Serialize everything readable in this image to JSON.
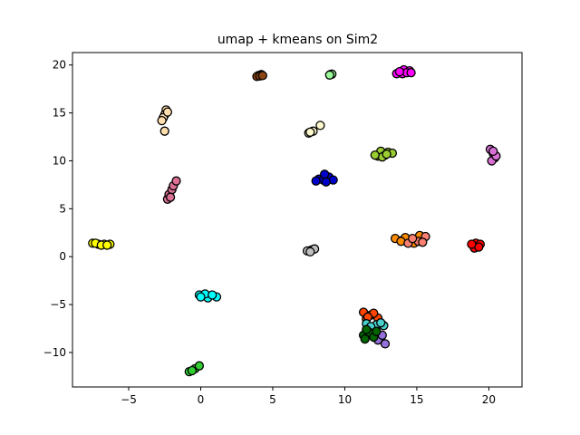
{
  "chart_data": {
    "type": "scatter",
    "title": "umap + kmeans on Sim2",
    "xlabel": "",
    "ylabel": "",
    "xlim": [
      -8.9,
      22.3
    ],
    "ylim": [
      -13.6,
      21.3
    ],
    "xticks": [
      -5,
      0,
      5,
      10,
      15,
      20
    ],
    "yticks": [
      -10,
      -5,
      0,
      5,
      10,
      15,
      20
    ],
    "xtick_labels": [
      "−5",
      "0",
      "5",
      "10",
      "15",
      "20"
    ],
    "ytick_labels": [
      "−10",
      "−5",
      "0",
      "5",
      "10",
      "15",
      "20"
    ],
    "grid": false,
    "legend": false,
    "clusters": [
      {
        "color": "#ffff00",
        "points": [
          [
            -7.5,
            1.4
          ],
          [
            -7.1,
            1.3
          ],
          [
            -6.7,
            1.3
          ],
          [
            -6.3,
            1.3
          ],
          [
            -7.3,
            1.4
          ],
          [
            -6.9,
            1.2
          ],
          [
            -6.5,
            1.2
          ]
        ]
      },
      {
        "color": "#8b4513",
        "points": [
          [
            4.0,
            18.9
          ],
          [
            4.2,
            19.0
          ],
          [
            3.9,
            18.8
          ],
          [
            4.1,
            18.85
          ],
          [
            4.3,
            18.9
          ]
        ]
      },
      {
        "color": "#98fb98",
        "points": [
          [
            9.0,
            19.0
          ],
          [
            9.1,
            19.05
          ],
          [
            8.95,
            18.95
          ]
        ]
      },
      {
        "color": "#ff00ff",
        "points": [
          [
            13.6,
            19.1
          ],
          [
            14.1,
            19.5
          ],
          [
            14.5,
            19.4
          ],
          [
            14.0,
            19.1
          ],
          [
            14.3,
            19.2
          ],
          [
            13.8,
            19.3
          ],
          [
            14.6,
            19.2
          ]
        ]
      },
      {
        "color": "#ffdead",
        "points": [
          [
            -2.4,
            15.3
          ],
          [
            -2.5,
            14.8
          ],
          [
            -2.6,
            14.5
          ],
          [
            -2.7,
            14.2
          ],
          [
            -2.5,
            13.1
          ],
          [
            -2.3,
            15.1
          ]
        ]
      },
      {
        "color": "#fffacd",
        "points": [
          [
            7.5,
            12.9
          ],
          [
            7.8,
            13.1
          ],
          [
            8.3,
            13.7
          ],
          [
            7.6,
            13.0
          ]
        ]
      },
      {
        "color": "#9acd32",
        "points": [
          [
            12.3,
            10.5
          ],
          [
            12.5,
            11.0
          ],
          [
            12.8,
            10.6
          ],
          [
            13.0,
            10.9
          ],
          [
            13.3,
            10.8
          ],
          [
            12.6,
            10.4
          ],
          [
            12.9,
            10.7
          ],
          [
            12.1,
            10.6
          ]
        ]
      },
      {
        "color": "#da70d6",
        "points": [
          [
            20.1,
            11.2
          ],
          [
            20.3,
            10.8
          ],
          [
            20.4,
            10.3
          ],
          [
            20.2,
            10.0
          ],
          [
            20.5,
            10.5
          ],
          [
            20.3,
            11.0
          ]
        ]
      },
      {
        "color": "#0000cd",
        "points": [
          [
            8.2,
            8.1
          ],
          [
            8.5,
            8.0
          ],
          [
            8.9,
            8.3
          ],
          [
            9.2,
            8.0
          ],
          [
            8.6,
            8.6
          ],
          [
            8.0,
            7.9
          ],
          [
            8.7,
            7.8
          ]
        ]
      },
      {
        "color": "#db7093",
        "points": [
          [
            -2.3,
            6.0
          ],
          [
            -2.2,
            6.5
          ],
          [
            -2.0,
            7.0
          ],
          [
            -1.9,
            7.4
          ],
          [
            -1.7,
            7.9
          ],
          [
            -2.1,
            6.2
          ]
        ]
      },
      {
        "color": "#c0c0c0",
        "points": [
          [
            7.4,
            0.6
          ],
          [
            7.7,
            0.7
          ],
          [
            7.9,
            0.8
          ],
          [
            7.6,
            0.5
          ]
        ]
      },
      {
        "color": "#ff8c00",
        "points": [
          [
            13.5,
            1.9
          ],
          [
            14.0,
            1.7
          ],
          [
            14.5,
            1.5
          ],
          [
            15.0,
            1.8
          ],
          [
            15.5,
            2.0
          ],
          [
            14.8,
            1.4
          ],
          [
            14.2,
            2.0
          ],
          [
            15.2,
            2.2
          ],
          [
            13.9,
            1.6
          ]
        ]
      },
      {
        "color": "#fa8072",
        "points": [
          [
            14.4,
            1.4
          ],
          [
            15.1,
            1.6
          ],
          [
            15.6,
            2.1
          ],
          [
            14.7,
            1.9
          ],
          [
            15.4,
            1.5
          ]
        ]
      },
      {
        "color": "#ff0000",
        "points": [
          [
            18.9,
            1.2
          ],
          [
            19.1,
            1.4
          ],
          [
            19.4,
            1.3
          ],
          [
            19.0,
            0.9
          ],
          [
            19.3,
            1.0
          ],
          [
            18.8,
            1.3
          ]
        ]
      },
      {
        "color": "#00ffff",
        "points": [
          [
            -0.1,
            -4.0
          ],
          [
            0.5,
            -4.3
          ],
          [
            1.1,
            -4.2
          ],
          [
            0.3,
            -3.9
          ],
          [
            0.8,
            -4.0
          ],
          [
            0.0,
            -4.2
          ]
        ]
      },
      {
        "color": "#ff4500",
        "points": [
          [
            11.3,
            -5.8
          ],
          [
            11.8,
            -6.1
          ],
          [
            12.3,
            -6.4
          ],
          [
            11.5,
            -6.5
          ],
          [
            12.0,
            -5.9
          ],
          [
            11.6,
            -6.3
          ]
        ]
      },
      {
        "color": "#48d1cc",
        "points": [
          [
            11.5,
            -7.0
          ],
          [
            12.2,
            -7.1
          ],
          [
            12.7,
            -7.2
          ],
          [
            11.8,
            -7.3
          ],
          [
            12.5,
            -6.9
          ]
        ]
      },
      {
        "color": "#9370db",
        "points": [
          [
            12.0,
            -8.0
          ],
          [
            12.5,
            -8.5
          ],
          [
            12.8,
            -9.1
          ],
          [
            12.3,
            -8.7
          ],
          [
            12.6,
            -8.2
          ]
        ]
      },
      {
        "color": "#006400",
        "points": [
          [
            11.3,
            -8.2
          ],
          [
            11.7,
            -7.9
          ],
          [
            12.0,
            -8.4
          ],
          [
            11.5,
            -7.6
          ],
          [
            12.2,
            -7.8
          ],
          [
            11.4,
            -8.6
          ]
        ]
      },
      {
        "color": "#32cd32",
        "points": [
          [
            -0.8,
            -12.0
          ],
          [
            -0.4,
            -11.7
          ],
          [
            -0.1,
            -11.4
          ],
          [
            -0.6,
            -11.9
          ]
        ]
      }
    ]
  }
}
